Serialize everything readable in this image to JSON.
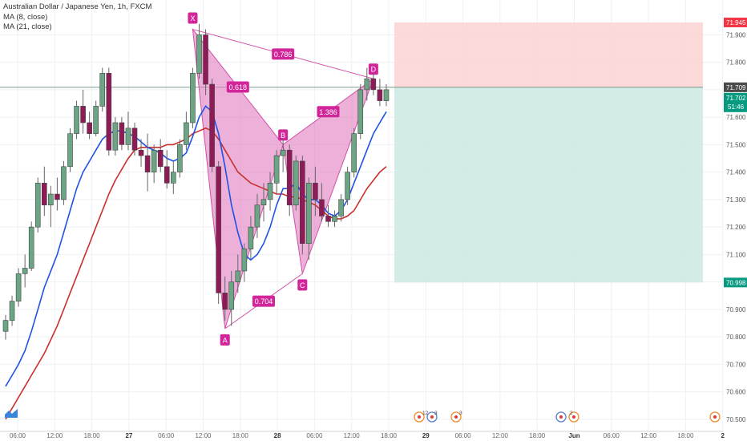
{
  "legend": {
    "symbol": "Australian Dollar / Japanese Yen, 1h, FXCM",
    "ma1": "MA (8, close)",
    "ma2": "MA (21, close)"
  },
  "chart_data": {
    "type": "candlestick",
    "ylim": [
      70.45,
      71.98
    ],
    "y_ticks": [
      "71.900",
      "71.800",
      "71.700",
      "71.600",
      "71.500",
      "71.400",
      "71.300",
      "71.200",
      "71.100",
      "71.000",
      "70.900",
      "70.800",
      "70.700",
      "70.600",
      "70.500"
    ],
    "x_ticks": [
      "06:00",
      "12:00",
      "18:00",
      "27",
      "06:00",
      "12:00",
      "18:00",
      "28",
      "06:00",
      "12:00",
      "18:00",
      "29",
      "06:00",
      "12:00",
      "18:00",
      "Jun",
      "06:00",
      "12:00",
      "18:00",
      "2"
    ],
    "candles": [
      [
        70.82,
        70.88,
        70.79,
        70.86
      ],
      [
        70.86,
        70.95,
        70.84,
        70.93
      ],
      [
        70.93,
        71.05,
        70.91,
        71.03
      ],
      [
        71.03,
        71.1,
        70.98,
        71.05
      ],
      [
        71.05,
        71.22,
        71.04,
        71.2
      ],
      [
        71.2,
        71.38,
        71.18,
        71.36
      ],
      [
        71.36,
        71.42,
        71.24,
        71.28
      ],
      [
        71.28,
        71.35,
        71.2,
        71.32
      ],
      [
        71.32,
        71.38,
        71.26,
        71.3
      ],
      [
        71.3,
        71.44,
        71.28,
        71.42
      ],
      [
        71.42,
        71.56,
        71.4,
        71.54
      ],
      [
        71.54,
        71.66,
        71.52,
        71.64
      ],
      [
        71.64,
        71.7,
        71.54,
        71.58
      ],
      [
        71.58,
        71.62,
        71.52,
        71.54
      ],
      [
        71.54,
        71.66,
        71.53,
        71.64
      ],
      [
        71.64,
        71.78,
        71.62,
        71.76
      ],
      [
        71.76,
        71.78,
        71.46,
        71.48
      ],
      [
        71.48,
        71.6,
        71.46,
        71.58
      ],
      [
        71.58,
        71.6,
        71.48,
        71.5
      ],
      [
        71.5,
        71.62,
        71.48,
        71.56
      ],
      [
        71.56,
        71.58,
        71.46,
        71.48
      ],
      [
        71.48,
        71.52,
        71.42,
        71.46
      ],
      [
        71.46,
        71.54,
        71.33,
        71.4
      ],
      [
        71.4,
        71.5,
        71.36,
        71.48
      ],
      [
        71.48,
        71.52,
        71.4,
        71.42
      ],
      [
        71.42,
        71.48,
        71.34,
        71.36
      ],
      [
        71.36,
        71.44,
        71.32,
        71.4
      ],
      [
        71.4,
        71.52,
        71.38,
        71.5
      ],
      [
        71.5,
        71.62,
        71.48,
        71.58
      ],
      [
        71.58,
        71.78,
        71.56,
        71.76
      ],
      [
        71.76,
        71.94,
        71.74,
        71.9
      ],
      [
        71.9,
        71.92,
        71.68,
        71.72
      ],
      [
        71.72,
        71.74,
        71.4,
        71.42
      ],
      [
        71.42,
        71.44,
        70.92,
        70.96
      ],
      [
        70.96,
        71.02,
        70.86,
        70.9
      ],
      [
        70.9,
        71.04,
        70.84,
        71.0
      ],
      [
        71.0,
        71.1,
        70.96,
        71.04
      ],
      [
        71.04,
        71.14,
        71.0,
        71.12
      ],
      [
        71.12,
        71.24,
        71.08,
        71.2
      ],
      [
        71.2,
        71.32,
        71.16,
        71.28
      ],
      [
        71.28,
        71.36,
        71.22,
        71.3
      ],
      [
        71.3,
        71.4,
        71.26,
        71.36
      ],
      [
        71.36,
        71.48,
        71.32,
        71.46
      ],
      [
        71.46,
        71.52,
        71.4,
        71.48
      ],
      [
        71.48,
        71.5,
        71.24,
        71.28
      ],
      [
        71.28,
        71.46,
        71.26,
        71.44
      ],
      [
        71.44,
        71.46,
        71.1,
        71.14
      ],
      [
        71.14,
        71.38,
        71.08,
        71.36
      ],
      [
        71.36,
        71.42,
        71.24,
        71.3
      ],
      [
        71.3,
        71.36,
        71.22,
        71.24
      ],
      [
        71.24,
        71.28,
        71.2,
        71.22
      ],
      [
        71.22,
        71.26,
        71.2,
        71.24
      ],
      [
        71.24,
        71.32,
        71.22,
        71.3
      ],
      [
        71.3,
        71.42,
        71.28,
        71.4
      ],
      [
        71.4,
        71.56,
        71.38,
        71.54
      ],
      [
        71.54,
        71.72,
        71.52,
        71.7
      ],
      [
        71.7,
        71.78,
        71.66,
        71.74
      ],
      [
        71.74,
        71.76,
        71.68,
        71.7
      ],
      [
        71.7,
        71.74,
        71.64,
        71.66
      ],
      [
        71.66,
        71.72,
        71.64,
        71.7
      ]
    ],
    "ma8": [
      70.62,
      70.66,
      70.7,
      70.75,
      70.82,
      70.9,
      70.98,
      71.04,
      71.1,
      71.18,
      71.26,
      71.34,
      71.4,
      71.44,
      71.48,
      71.52,
      71.54,
      71.55,
      71.55,
      71.54,
      71.53,
      71.51,
      71.49,
      71.48,
      71.47,
      71.45,
      71.44,
      71.45,
      71.47,
      71.53,
      71.6,
      71.64,
      71.62,
      71.54,
      71.42,
      71.28,
      71.18,
      71.1,
      71.08,
      71.1,
      71.14,
      71.2,
      71.28,
      71.34,
      71.34,
      71.36,
      71.32,
      71.3,
      71.3,
      71.28,
      71.25,
      71.24,
      71.26,
      71.3,
      71.36,
      71.42,
      71.48,
      71.54,
      71.58,
      71.62
    ],
    "ma21": [
      70.5,
      70.54,
      70.58,
      70.62,
      70.66,
      70.7,
      70.74,
      70.79,
      70.84,
      70.9,
      70.96,
      71.02,
      71.08,
      71.14,
      71.2,
      71.26,
      71.32,
      71.37,
      71.41,
      71.45,
      71.48,
      71.49,
      71.49,
      71.49,
      71.49,
      71.5,
      71.5,
      71.51,
      71.52,
      71.54,
      71.55,
      71.56,
      71.55,
      71.52,
      71.48,
      71.44,
      71.4,
      71.38,
      71.36,
      71.35,
      71.34,
      71.33,
      71.32,
      71.32,
      71.31,
      71.31,
      71.3,
      71.29,
      71.28,
      71.26,
      71.24,
      71.23,
      71.23,
      71.24,
      71.26,
      71.3,
      71.34,
      71.37,
      71.4,
      71.42
    ],
    "pattern": {
      "points": [
        {
          "label": "X",
          "value": 71.92
        },
        {
          "label": "A",
          "value": 70.83
        },
        {
          "label": "B",
          "value": 71.5
        },
        {
          "label": "C",
          "value": 71.03
        },
        {
          "label": "D",
          "value": 71.74
        }
      ],
      "ratios": [
        "0.618",
        "0.786",
        "0.704",
        "1.386"
      ]
    },
    "position": {
      "stop": 71.945,
      "entry": 71.709,
      "target": 70.998,
      "stop_label": "71.945",
      "entry_label": "71.709",
      "target_label": "70.998"
    },
    "last_price_label": "71.702",
    "countdown_label": "51:46",
    "events": [
      "12",
      "3",
      "3",
      "2"
    ],
    "colors": {
      "up": "#6ba583",
      "down": "#8e1a56",
      "ma8": "#1e53e5",
      "ma21": "#c9302c",
      "pattern_fill": "#e07cbf",
      "pattern_stroke": "#d251a7",
      "label_bg": "#d2259a",
      "stop_zone": "#fbd4d2",
      "target_zone": "#cfeae4",
      "stop_tag": "#f23645",
      "entry_tag": "#4a4a4a",
      "target_tag": "#089981"
    }
  }
}
